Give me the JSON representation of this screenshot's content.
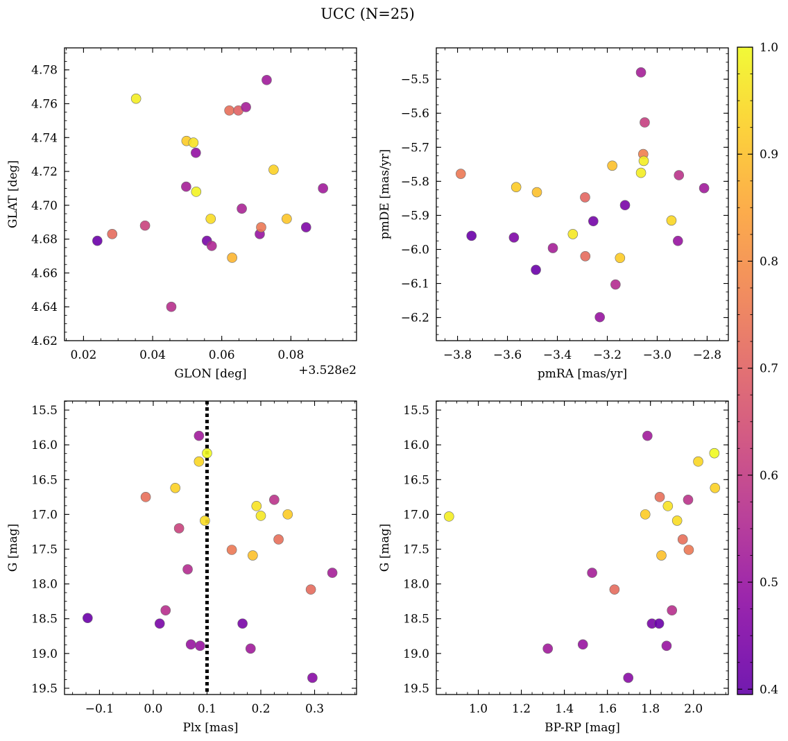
{
  "title": "UCC (N=25)",
  "colorbar": {
    "cmap": "plasma",
    "range": [
      0.395,
      1.0
    ],
    "ticks": [
      0.4,
      0.5,
      0.6,
      0.7,
      0.8,
      0.9,
      1.0
    ],
    "tick_labels": [
      "0.4",
      "0.5",
      "0.6",
      "0.7",
      "0.8",
      "0.9",
      "1.0"
    ]
  },
  "chart_data": [
    {
      "type": "scatter",
      "panel": "top-left",
      "xlabel": "GLON [deg]",
      "ylabel": "GLAT [deg]",
      "x_offset_label": "+3.528e2",
      "xlim": [
        0.0145,
        0.099
      ],
      "ylim": [
        4.62,
        4.793
      ],
      "xticks": [
        0.02,
        0.04,
        0.06,
        0.08
      ],
      "xtick_labels": [
        "0.02",
        "0.04",
        "0.06",
        "0.08"
      ],
      "yticks": [
        4.62,
        4.64,
        4.66,
        4.68,
        4.7,
        4.72,
        4.74,
        4.76,
        4.78
      ],
      "ytick_labels": [
        "4.62",
        "4.64",
        "4.66",
        "4.68",
        "4.70",
        "4.72",
        "4.74",
        "4.76",
        "4.78"
      ],
      "points": [
        {
          "x": 0.024,
          "y": 4.679,
          "c": 0.41
        },
        {
          "x": 0.0283,
          "y": 4.683,
          "c": 0.72
        },
        {
          "x": 0.0352,
          "y": 4.763,
          "c": 0.98
        },
        {
          "x": 0.0378,
          "y": 4.688,
          "c": 0.62
        },
        {
          "x": 0.0454,
          "y": 4.64,
          "c": 0.57
        },
        {
          "x": 0.0497,
          "y": 4.711,
          "c": 0.53
        },
        {
          "x": 0.0498,
          "y": 4.738,
          "c": 0.92
        },
        {
          "x": 0.0518,
          "y": 4.737,
          "c": 0.96
        },
        {
          "x": 0.0525,
          "y": 4.731,
          "c": 0.49
        },
        {
          "x": 0.0526,
          "y": 4.708,
          "c": 0.99
        },
        {
          "x": 0.0557,
          "y": 4.679,
          "c": 0.44
        },
        {
          "x": 0.0568,
          "y": 4.692,
          "c": 0.95
        },
        {
          "x": 0.0571,
          "y": 4.676,
          "c": 0.55
        },
        {
          "x": 0.0622,
          "y": 4.756,
          "c": 0.73
        },
        {
          "x": 0.063,
          "y": 4.669,
          "c": 0.88
        },
        {
          "x": 0.0648,
          "y": 4.756,
          "c": 0.7
        },
        {
          "x": 0.0658,
          "y": 4.698,
          "c": 0.54
        },
        {
          "x": 0.067,
          "y": 4.758,
          "c": 0.53
        },
        {
          "x": 0.071,
          "y": 4.683,
          "c": 0.5
        },
        {
          "x": 0.0714,
          "y": 4.687,
          "c": 0.75
        },
        {
          "x": 0.073,
          "y": 4.774,
          "c": 0.52
        },
        {
          "x": 0.075,
          "y": 4.721,
          "c": 0.93
        },
        {
          "x": 0.0788,
          "y": 4.692,
          "c": 0.91
        },
        {
          "x": 0.0844,
          "y": 4.687,
          "c": 0.45
        },
        {
          "x": 0.0893,
          "y": 4.71,
          "c": 0.52
        }
      ]
    },
    {
      "type": "scatter",
      "panel": "top-right",
      "xlabel": "pmRA [mas/yr]",
      "ylabel": "pmDE [mas/yr]",
      "xlim": [
        -3.885,
        -2.715
      ],
      "ylim": [
        -6.268,
        -5.408
      ],
      "xticks": [
        -3.8,
        -3.6,
        -3.4,
        -3.2,
        -3.0,
        -2.8
      ],
      "xtick_labels": [
        "−3.8",
        "−3.6",
        "−3.4",
        "−3.2",
        "−3.0",
        "−2.8"
      ],
      "yticks": [
        -6.2,
        -6.1,
        -6.0,
        -5.9,
        -5.8,
        -5.7,
        -5.6,
        -5.5
      ],
      "ytick_labels": [
        "−6.2",
        "−6.1",
        "−6.0",
        "−5.9",
        "−5.8",
        "−5.7",
        "−5.6",
        "−5.5"
      ],
      "points": [
        {
          "x": -3.787,
          "y": -5.778,
          "c": 0.75
        },
        {
          "x": -3.744,
          "y": -5.96,
          "c": 0.41
        },
        {
          "x": -3.574,
          "y": -5.965,
          "c": 0.45
        },
        {
          "x": -3.565,
          "y": -5.817,
          "c": 0.92
        },
        {
          "x": -3.486,
          "y": -6.06,
          "c": 0.41
        },
        {
          "x": -3.482,
          "y": -5.832,
          "c": 0.9
        },
        {
          "x": -3.418,
          "y": -5.996,
          "c": 0.53
        },
        {
          "x": -3.338,
          "y": -5.955,
          "c": 0.97
        },
        {
          "x": -3.289,
          "y": -5.847,
          "c": 0.71
        },
        {
          "x": -3.288,
          "y": -6.02,
          "c": 0.72
        },
        {
          "x": -3.256,
          "y": -5.917,
          "c": 0.43
        },
        {
          "x": -3.23,
          "y": -6.199,
          "c": 0.5
        },
        {
          "x": -3.18,
          "y": -5.754,
          "c": 0.9
        },
        {
          "x": -3.167,
          "y": -6.103,
          "c": 0.56
        },
        {
          "x": -3.149,
          "y": -6.025,
          "c": 0.92
        },
        {
          "x": -3.129,
          "y": -5.87,
          "c": 0.44
        },
        {
          "x": -3.065,
          "y": -5.775,
          "c": 0.98
        },
        {
          "x": -3.065,
          "y": -5.48,
          "c": 0.53
        },
        {
          "x": -3.056,
          "y": -5.72,
          "c": 0.77
        },
        {
          "x": -3.054,
          "y": -5.74,
          "c": 0.98
        },
        {
          "x": -3.05,
          "y": -5.627,
          "c": 0.61
        },
        {
          "x": -2.943,
          "y": -5.915,
          "c": 0.94
        },
        {
          "x": -2.917,
          "y": -5.975,
          "c": 0.5
        },
        {
          "x": -2.913,
          "y": -5.782,
          "c": 0.58
        },
        {
          "x": -2.812,
          "y": -5.82,
          "c": 0.52
        }
      ]
    },
    {
      "type": "scatter",
      "panel": "bottom-left",
      "xlabel": "Plx [mas]",
      "ylabel": "G [mag]",
      "xlim": [
        -0.165,
        0.378
      ],
      "ylim": [
        19.59,
        15.37
      ],
      "xticks": [
        -0.1,
        0.0,
        0.1,
        0.2,
        0.3
      ],
      "xtick_labels": [
        "−0.1",
        "0.0",
        "0.1",
        "0.2",
        "0.3"
      ],
      "yticks": [
        15.5,
        16.0,
        16.5,
        17.0,
        17.5,
        18.0,
        18.5,
        19.0,
        19.5
      ],
      "ytick_labels": [
        "15.5",
        "16.0",
        "16.5",
        "17.0",
        "17.5",
        "18.0",
        "18.5",
        "19.0",
        "19.5"
      ],
      "vline": {
        "x": 0.1,
        "style": "dotted"
      },
      "points": [
        {
          "x": -0.122,
          "y": 18.49,
          "c": 0.41
        },
        {
          "x": -0.014,
          "y": 16.75,
          "c": 0.73
        },
        {
          "x": 0.012,
          "y": 18.57,
          "c": 0.44
        },
        {
          "x": 0.023,
          "y": 18.38,
          "c": 0.57
        },
        {
          "x": 0.041,
          "y": 16.62,
          "c": 0.93
        },
        {
          "x": 0.048,
          "y": 17.2,
          "c": 0.62
        },
        {
          "x": 0.064,
          "y": 17.79,
          "c": 0.56
        },
        {
          "x": 0.07,
          "y": 18.87,
          "c": 0.5
        },
        {
          "x": 0.085,
          "y": 15.87,
          "c": 0.52
        },
        {
          "x": 0.085,
          "y": 16.24,
          "c": 0.94
        },
        {
          "x": 0.087,
          "y": 18.89,
          "c": 0.5
        },
        {
          "x": 0.096,
          "y": 17.09,
          "c": 0.95
        },
        {
          "x": 0.1,
          "y": 16.12,
          "c": 1.0
        },
        {
          "x": 0.146,
          "y": 17.51,
          "c": 0.75
        },
        {
          "x": 0.166,
          "y": 18.57,
          "c": 0.44
        },
        {
          "x": 0.181,
          "y": 18.93,
          "c": 0.52
        },
        {
          "x": 0.185,
          "y": 17.59,
          "c": 0.9
        },
        {
          "x": 0.192,
          "y": 16.88,
          "c": 0.96
        },
        {
          "x": 0.2,
          "y": 17.02,
          "c": 0.97
        },
        {
          "x": 0.225,
          "y": 16.79,
          "c": 0.58
        },
        {
          "x": 0.233,
          "y": 17.36,
          "c": 0.73
        },
        {
          "x": 0.25,
          "y": 17.0,
          "c": 0.92
        },
        {
          "x": 0.293,
          "y": 18.08,
          "c": 0.72
        },
        {
          "x": 0.296,
          "y": 19.35,
          "c": 0.47
        },
        {
          "x": 0.333,
          "y": 17.84,
          "c": 0.53
        }
      ]
    },
    {
      "type": "scatter",
      "panel": "bottom-right",
      "xlabel": "BP-RP [mag]",
      "ylabel": "G [mag]",
      "xlim": [
        0.805,
        2.162
      ],
      "ylim": [
        19.59,
        15.37
      ],
      "xticks": [
        1.0,
        1.2,
        1.4,
        1.6,
        1.8,
        2.0
      ],
      "xtick_labels": [
        "1.0",
        "1.2",
        "1.4",
        "1.6",
        "1.8",
        "2.0"
      ],
      "yticks": [
        15.5,
        16.0,
        16.5,
        17.0,
        17.5,
        18.0,
        18.5,
        19.0,
        19.5
      ],
      "ytick_labels": [
        "15.5",
        "16.0",
        "16.5",
        "17.0",
        "17.5",
        "18.0",
        "18.5",
        "19.0",
        "19.5"
      ],
      "points": [
        {
          "x": 0.864,
          "y": 17.03,
          "c": 0.98
        },
        {
          "x": 1.323,
          "y": 18.93,
          "c": 0.52
        },
        {
          "x": 1.486,
          "y": 18.87,
          "c": 0.5
        },
        {
          "x": 1.529,
          "y": 17.84,
          "c": 0.53
        },
        {
          "x": 1.633,
          "y": 18.08,
          "c": 0.72
        },
        {
          "x": 1.697,
          "y": 19.35,
          "c": 0.47
        },
        {
          "x": 1.776,
          "y": 17.0,
          "c": 0.92
        },
        {
          "x": 1.786,
          "y": 15.87,
          "c": 0.52
        },
        {
          "x": 1.807,
          "y": 18.57,
          "c": 0.44
        },
        {
          "x": 1.84,
          "y": 18.57,
          "c": 0.41
        },
        {
          "x": 1.843,
          "y": 16.75,
          "c": 0.73
        },
        {
          "x": 1.851,
          "y": 17.59,
          "c": 0.9
        },
        {
          "x": 1.875,
          "y": 18.89,
          "c": 0.5
        },
        {
          "x": 1.881,
          "y": 16.88,
          "c": 0.96
        },
        {
          "x": 1.9,
          "y": 18.38,
          "c": 0.57
        },
        {
          "x": 1.924,
          "y": 17.09,
          "c": 0.95
        },
        {
          "x": 1.95,
          "y": 17.36,
          "c": 0.73
        },
        {
          "x": 1.975,
          "y": 16.79,
          "c": 0.58
        },
        {
          "x": 1.978,
          "y": 17.51,
          "c": 0.75
        },
        {
          "x": 2.022,
          "y": 16.24,
          "c": 0.94
        },
        {
          "x": 2.097,
          "y": 16.12,
          "c": 1.0
        },
        {
          "x": 2.1,
          "y": 16.62,
          "c": 0.93
        }
      ]
    }
  ]
}
